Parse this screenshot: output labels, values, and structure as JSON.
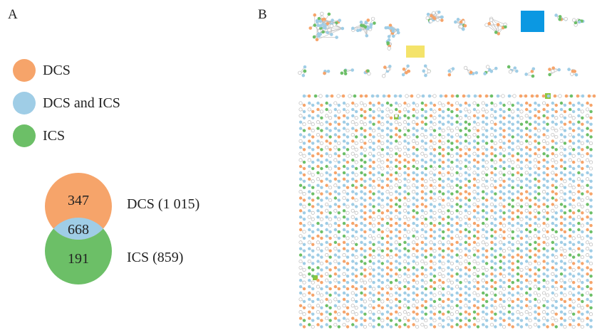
{
  "panels": {
    "a": "A",
    "b": "B"
  },
  "colors": {
    "dcs": "#f6a46a",
    "both": "#9fcde6",
    "ics": "#6cbf67",
    "highlight_blue": "#0b98e2",
    "highlight_yellow": "#f4e36a",
    "highlight_green": "#8cc63e",
    "edge": "#b9b9b9"
  },
  "legend": [
    {
      "label": "DCS",
      "color": "dcs"
    },
    {
      "label": "DCS and ICS",
      "color": "both"
    },
    {
      "label": "ICS",
      "color": "ics"
    }
  ],
  "venn": {
    "dcs_only": "347",
    "overlap": "668",
    "ics_only": "191",
    "dcs_label": "DCS (1 015)",
    "ics_label": "ICS (859)"
  }
}
